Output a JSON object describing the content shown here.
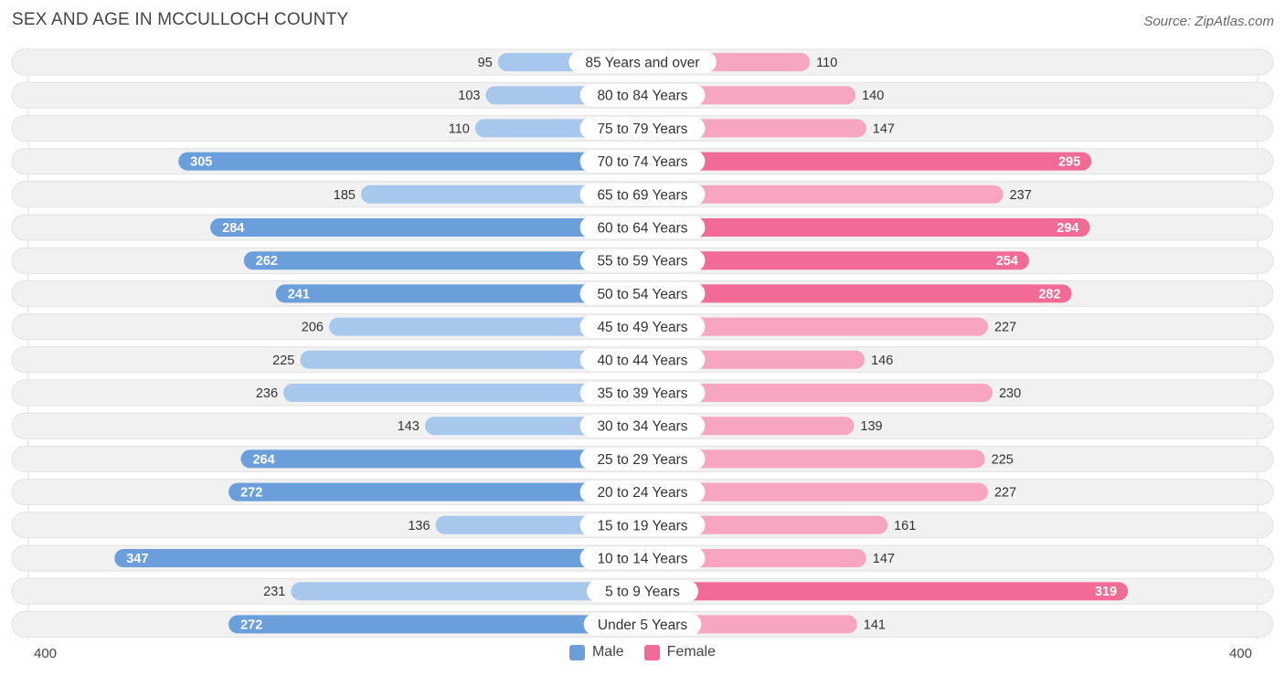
{
  "title": "SEX AND AGE IN MCCULLOCH COUNTY",
  "source": "Source: ZipAtlas.com",
  "colors": {
    "male_dark": "#6a9fdc",
    "male_light": "#a7c8ec",
    "female_dark": "#f26b97",
    "female_light": "#f7a5c0",
    "row_bg": "#f1f1f1"
  },
  "legend": {
    "male": "Male",
    "female": "Female"
  },
  "axis": {
    "left_label": "400",
    "right_label": "400"
  },
  "chart_data": {
    "type": "bar",
    "orientation": "horizontal-diverging",
    "title": "SEX AND AGE IN MCCULLOCH COUNTY",
    "categories": [
      "85 Years and over",
      "80 to 84 Years",
      "75 to 79 Years",
      "70 to 74 Years",
      "65 to 69 Years",
      "60 to 64 Years",
      "55 to 59 Years",
      "50 to 54 Years",
      "45 to 49 Years",
      "40 to 44 Years",
      "35 to 39 Years",
      "30 to 34 Years",
      "25 to 29 Years",
      "20 to 24 Years",
      "15 to 19 Years",
      "10 to 14 Years",
      "5 to 9 Years",
      "Under 5 Years"
    ],
    "series": [
      {
        "name": "Male",
        "values": [
          95,
          103,
          110,
          305,
          185,
          284,
          262,
          241,
          206,
          225,
          236,
          143,
          264,
          272,
          136,
          347,
          231,
          272
        ]
      },
      {
        "name": "Female",
        "values": [
          110,
          140,
          147,
          295,
          237,
          294,
          254,
          282,
          227,
          146,
          230,
          139,
          225,
          227,
          161,
          147,
          319,
          141
        ]
      }
    ],
    "xlim": [
      0,
      400
    ],
    "legend_position": "bottom-center"
  }
}
